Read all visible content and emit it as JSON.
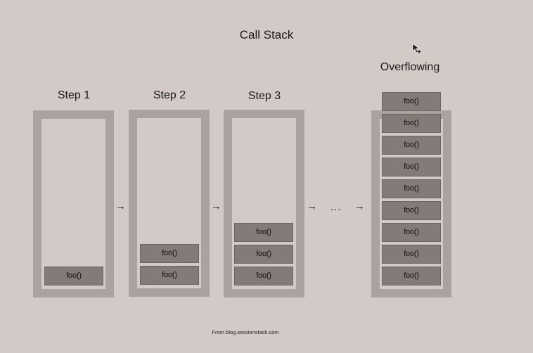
{
  "title": "Call Stack",
  "frame_label": "foo()",
  "steps": [
    {
      "label": "Step 1",
      "count": 1
    },
    {
      "label": "Step 2",
      "count": 2
    },
    {
      "label": "Step 3",
      "count": 3
    }
  ],
  "overflow": {
    "label": "Overflowing",
    "count": 9
  },
  "arrow_glyph": "→",
  "ellipsis": "...",
  "footer": "From blog.sessionstack.com",
  "cursor_icon": "pointer-plus-icon"
}
